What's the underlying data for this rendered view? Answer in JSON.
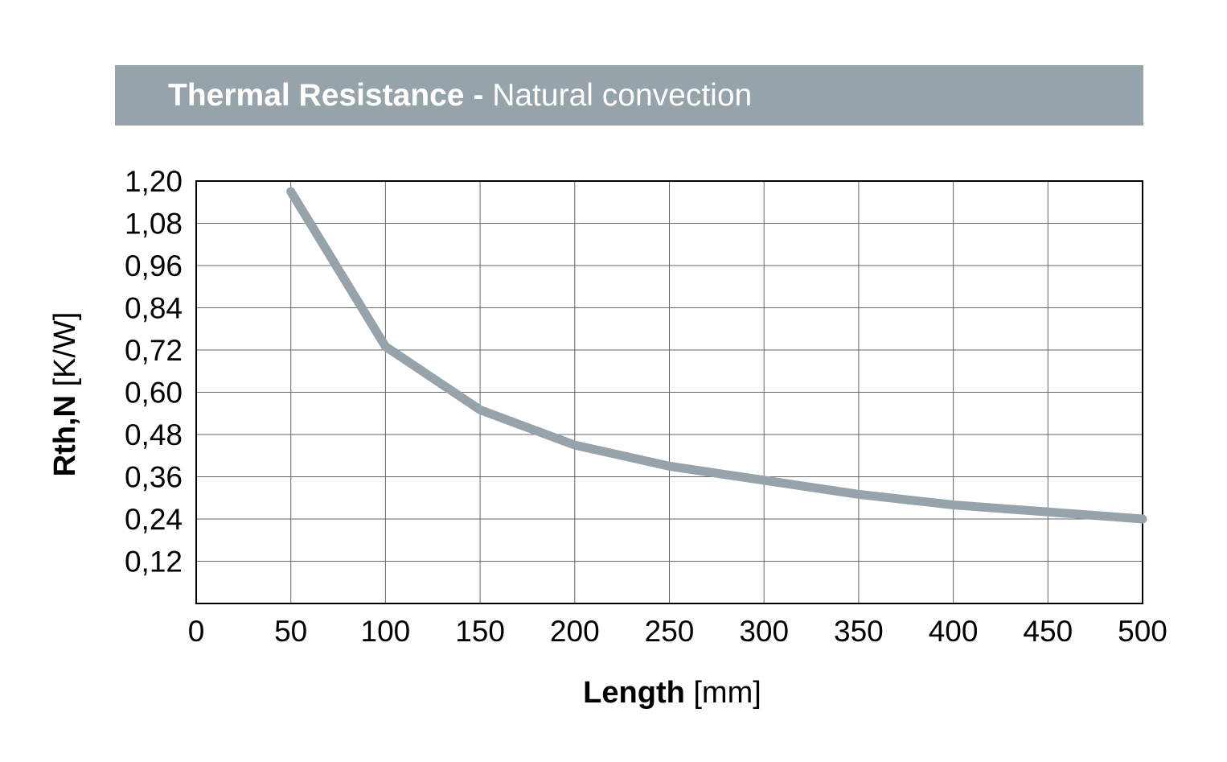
{
  "chart_data": {
    "type": "line",
    "title": "Thermal Resistance",
    "title_separator": "-",
    "subtitle": "Natural convection",
    "xlabel": "Length",
    "xlabel_unit": "[mm]",
    "ylabel": "Rth,N",
    "ylabel_unit": "[K/W]",
    "xlim": [
      0,
      500
    ],
    "ylim": [
      0,
      1.2
    ],
    "x_ticks": [
      "0",
      "50",
      "100",
      "150",
      "200",
      "250",
      "300",
      "350",
      "400",
      "450",
      "500"
    ],
    "y_ticks": [
      "1,20",
      "1,08",
      "0,96",
      "0,84",
      "0,72",
      "0,60",
      "0,48",
      "0,36",
      "0,24",
      "0,12"
    ],
    "grid": true,
    "series": [
      {
        "x": [
          50,
          100,
          150,
          200,
          250,
          300,
          350,
          400,
          450,
          500
        ],
        "y": [
          1.17,
          0.73,
          0.55,
          0.45,
          0.39,
          0.35,
          0.31,
          0.28,
          0.26,
          0.24
        ]
      }
    ],
    "colors": {
      "line": "#97a3aa",
      "title_bar": "#97a3aa"
    }
  }
}
